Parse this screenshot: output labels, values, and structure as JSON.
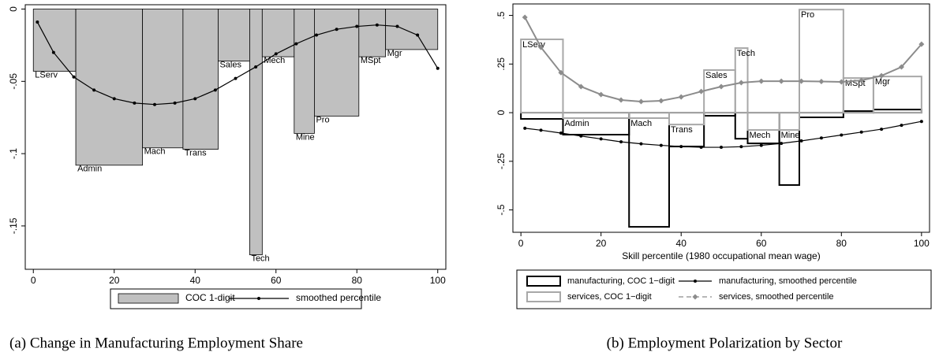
{
  "chart_data": [
    {
      "type": "histogram",
      "caption": "(a) Change in Manufacturing Employment Share",
      "categories": [
        "LServ",
        "Admin",
        "Mach",
        "Trans",
        "Sales",
        "Tech",
        "Mech",
        "Mine",
        "Pro",
        "MSpt",
        "Mgr"
      ],
      "bins": [
        0,
        10.5,
        27,
        37,
        45.7,
        53.5,
        56.6,
        64.5,
        69.5,
        80.5,
        87.1,
        100
      ],
      "xlim": [
        -2,
        102
      ],
      "xticks": [
        0,
        20,
        40,
        60,
        80,
        100
      ],
      "ylim": [
        -0.18,
        0.003
      ],
      "yticks": [
        0,
        {
          "value": -0.05,
          "label": "-.05"
        },
        {
          "value": -0.1,
          "label": "-.1"
        },
        {
          "value": -0.15,
          "label": "-.15"
        }
      ],
      "series": [
        {
          "name": "COC 1-digit",
          "kind": "bar",
          "color": "#c0c0c0",
          "values": [
            -0.043,
            -0.108,
            -0.096,
            -0.097,
            -0.036,
            -0.17,
            -0.033,
            -0.086,
            -0.074,
            -0.033,
            -0.028
          ]
        },
        {
          "name": "smoothed percentile",
          "kind": "line",
          "color": "#000000",
          "marker": "circle",
          "x": [
            1,
            5,
            10,
            15,
            20,
            25,
            30,
            35,
            40,
            45,
            50,
            55,
            60,
            65,
            70,
            75,
            80,
            85,
            90,
            95,
            100
          ],
          "values": [
            -0.009,
            -0.03,
            -0.047,
            -0.056,
            -0.062,
            -0.065,
            -0.066,
            -0.065,
            -0.062,
            -0.056,
            -0.048,
            -0.04,
            -0.031,
            -0.024,
            -0.018,
            -0.014,
            -0.012,
            -0.011,
            -0.012,
            -0.018,
            -0.041
          ]
        }
      ]
    },
    {
      "type": "histogram",
      "caption": "(b) Employment Polarization by Sector",
      "xlabel": "Skill percentile (1980 occupational mean wage)",
      "categories": [
        "LServ",
        "Admin",
        "Mach",
        "Trans",
        "Sales",
        "Tech",
        "Mech",
        "Mine",
        "Pro",
        "MSpt",
        "Mgr"
      ],
      "bins": [
        0,
        10.5,
        27,
        37,
        45.7,
        53.5,
        56.6,
        64.5,
        69.5,
        80.5,
        88,
        100
      ],
      "xlim": [
        -2,
        102
      ],
      "xticks": [
        0,
        20,
        40,
        60,
        80,
        100
      ],
      "ylim": [
        -0.615,
        0.559
      ],
      "yticks": [
        {
          "value": 0.5,
          "label": ".5"
        },
        {
          "value": 0.25,
          "label": ".25"
        },
        0,
        {
          "value": -0.25,
          "label": "-.25"
        },
        {
          "value": -0.5,
          "label": "-.5"
        }
      ],
      "series": [
        {
          "name": "manufacturing, COC 1−digit",
          "kind": "bar",
          "color": "#000000",
          "values": [
            -0.032,
            -0.113,
            -0.587,
            -0.174,
            -0.016,
            -0.134,
            -0.158,
            -0.372,
            -0.024,
            0.008,
            0.016
          ]
        },
        {
          "name": "manufacturing, smoothed percentile",
          "kind": "line",
          "color": "#000000",
          "marker": "circle",
          "x": [
            1,
            5,
            10,
            15,
            20,
            25,
            30,
            35,
            40,
            45,
            50,
            55,
            60,
            65,
            70,
            75,
            80,
            85,
            90,
            95,
            100
          ],
          "values": [
            -0.08,
            -0.09,
            -0.105,
            -0.12,
            -0.135,
            -0.15,
            -0.16,
            -0.168,
            -0.174,
            -0.178,
            -0.178,
            -0.175,
            -0.168,
            -0.158,
            -0.145,
            -0.13,
            -0.115,
            -0.1,
            -0.085,
            -0.065,
            -0.045
          ]
        },
        {
          "name": "services, COC 1−digit",
          "kind": "bar",
          "color": "#a8a8a8",
          "values": [
            0.377,
            -0.028,
            -0.028,
            -0.061,
            0.219,
            0.332,
            -0.089,
            -0.089,
            0.53,
            0.178,
            0.186
          ]
        },
        {
          "name": "services, smoothed percentile",
          "kind": "line",
          "color": "#8c8c8c",
          "marker": "diamond",
          "x": [
            1,
            5,
            10,
            15,
            20,
            25,
            30,
            35,
            40,
            45,
            50,
            55,
            60,
            65,
            70,
            75,
            80,
            85,
            90,
            95,
            100
          ],
          "values": [
            0.49,
            0.336,
            0.206,
            0.134,
            0.093,
            0.065,
            0.057,
            0.061,
            0.081,
            0.109,
            0.134,
            0.154,
            0.162,
            0.162,
            0.162,
            0.16,
            0.158,
            0.166,
            0.19,
            0.235,
            0.352
          ]
        }
      ]
    }
  ]
}
